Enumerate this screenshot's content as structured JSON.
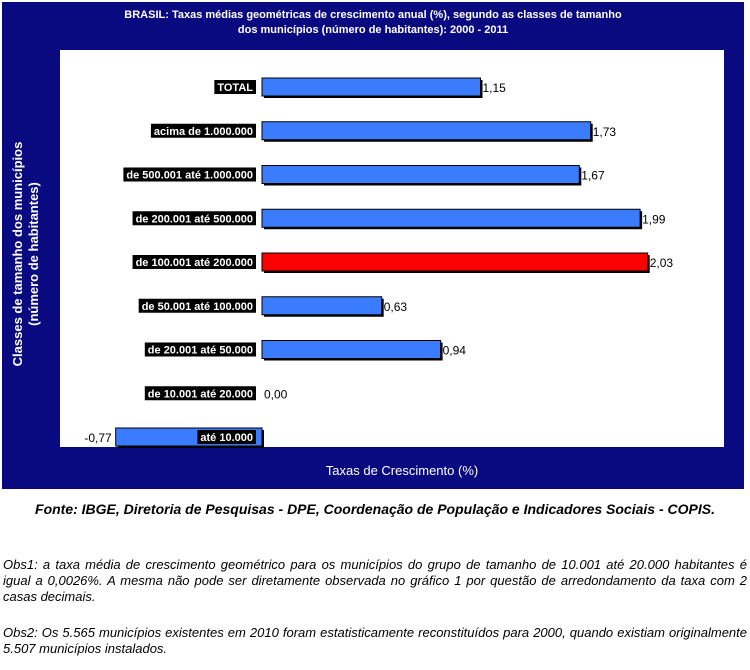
{
  "chart_data": {
    "type": "bar",
    "orientation": "horizontal",
    "title": "BRASIL: Taxas médias geométricas de crescimento anual (%), segundo as classes de tamanho dos municípios (número de habitantes): 2000 - 2011",
    "title_lines": [
      "BRASIL: Taxas médias geométricas de crescimento anual (%), segundo as classes de tamanho",
      "dos municípios (número de habitantes): 2000 - 2011"
    ],
    "xlabel": "Taxas de Crescimento (%)",
    "ylabel": "Classes de tamanho dos municípios (número de habitantes)",
    "ylabel_lines": [
      "Classes de tamanho dos municípios",
      "(número de habitantes)"
    ],
    "categories": [
      "TOTAL",
      "acima de 1.000.000",
      "de 500.001 até 1.000.000",
      "de 200.001 até 500.000",
      "de 100.001 até 200.000",
      "de 50.001 até 100.000",
      "de 20.001 até 50.000",
      "de 10.001 até 20.000",
      "até 10.000"
    ],
    "values": [
      1.15,
      1.73,
      1.67,
      1.99,
      2.03,
      0.63,
      0.94,
      0.0,
      -0.77
    ],
    "value_labels": [
      "1,15",
      "1,73",
      "1,67",
      "1,99",
      "2,03",
      "0,63",
      "0,94",
      "0,00",
      "-0,77"
    ],
    "highlight_index": 4,
    "colors": {
      "bar": "#3b7cff",
      "highlight": "#ff0000",
      "frame": "#0a0a80",
      "label_bg": "#000000"
    },
    "grid": false,
    "legend": "none"
  },
  "source": "Fonte: IBGE, Diretoria de Pesquisas - DPE, Coordenação de População e Indicadores Sociais - COPIS.",
  "obs1": "Obs1: a taxa média de crescimento geométrico para os municípios do grupo de tamanho de 10.001 até 20.000 habitantes é igual a 0,0026%. A mesma não pode ser diretamente observada no gráfico 1 por questão de arredondamento da taxa com 2 casas decimais.",
  "obs2": "Obs2: Os 5.565 municípios existentes em 2010 foram estatisticamente reconstituídos para 2000, quando existiam originalmente 5.507 municípios instalados."
}
